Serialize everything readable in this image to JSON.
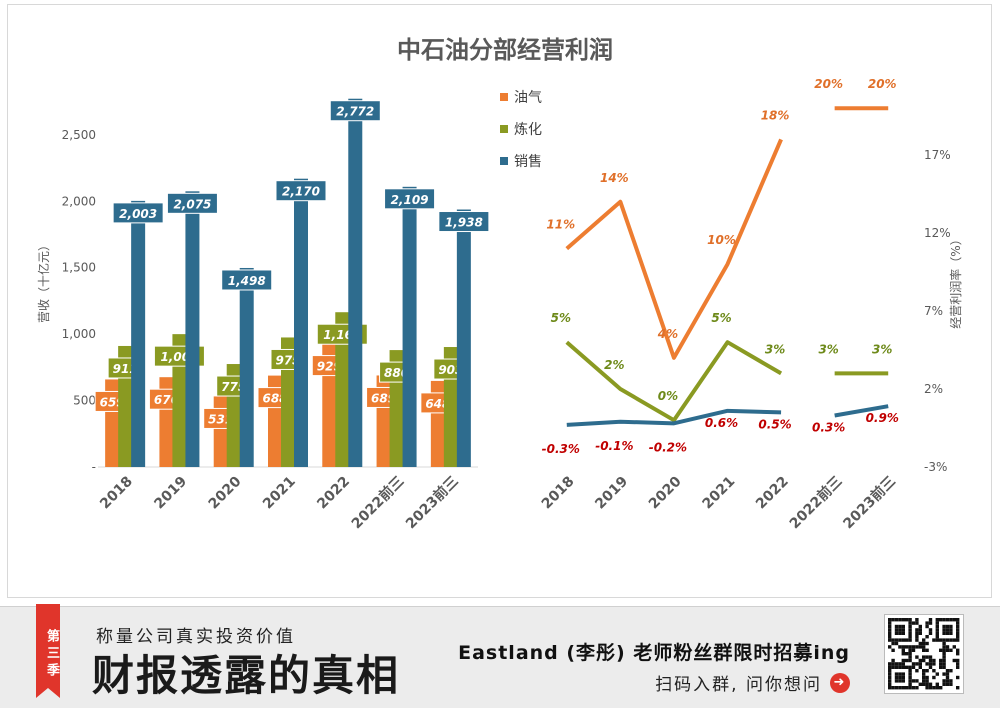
{
  "chart_data": {
    "title": "中石油分部经营利润",
    "legend": {
      "position": "top-center",
      "entries": [
        {
          "name": "油气",
          "color": "#ed7d31"
        },
        {
          "name": "炼化",
          "color": "#8a9a22"
        },
        {
          "name": "销售",
          "color": "#2e6c8e"
        }
      ]
    },
    "categories": [
      "2018",
      "2019",
      "2020",
      "2021",
      "2022",
      "2022前三",
      "2023前三"
    ],
    "charts": [
      {
        "type": "bar",
        "ylabel": "营收（十亿元）",
        "ylim": [
          0,
          2800
        ],
        "yticks": [
          "-",
          "500",
          "1,000",
          "1,500",
          "2,000",
          "2,500"
        ],
        "ytick_values": [
          0,
          500,
          1000,
          1500,
          2000,
          2500
        ],
        "grid": false,
        "series": [
          {
            "name": "油气",
            "values": [
              659,
              676,
              531,
              688,
              929,
              689,
              648
            ],
            "labels": [
              "659",
              "676",
              "531",
              "688",
              "929",
              "689",
              "648"
            ]
          },
          {
            "name": "炼化",
            "values": [
              911,
              1000,
              775,
              975,
              1165,
              880,
              903
            ],
            "labels": [
              "911",
              "1,000",
              "775",
              "975",
              "1,165",
              "880",
              "903"
            ]
          },
          {
            "name": "销售",
            "values": [
              2003,
              2075,
              1498,
              2170,
              2772,
              2109,
              1938
            ],
            "labels": [
              "2,003",
              "2,075",
              "1,498",
              "2,170",
              "2,772",
              "2,109",
              "1,938"
            ]
          }
        ]
      },
      {
        "type": "line",
        "ylabel": "经营利润率（%）",
        "ylim": [
          -3,
          22
        ],
        "yticks": [
          "-3%",
          "2%",
          "7%",
          "12%",
          "17%"
        ],
        "ytick_values": [
          -3,
          2,
          7,
          12,
          17
        ],
        "grid": false,
        "segments_break_after": "2022",
        "series": [
          {
            "name": "油气",
            "values": [
              11,
              14,
              4,
              10,
              18,
              20,
              20
            ],
            "labels": [
              "11%",
              "14%",
              "4%",
              "10%",
              "18%",
              "20%",
              "20%"
            ]
          },
          {
            "name": "炼化",
            "values": [
              5,
              2,
              0,
              5,
              3,
              3,
              3
            ],
            "labels": [
              "5%",
              "2%",
              "0%",
              "5%",
              "3%",
              "3%",
              "3%"
            ]
          },
          {
            "name": "销售",
            "values": [
              -0.3,
              -0.1,
              -0.2,
              0.6,
              0.5,
              0.3,
              0.9
            ],
            "labels": [
              "-0.3%",
              "-0.1%",
              "-0.2%",
              "0.6%",
              "0.5%",
              "0.3%",
              "0.9%"
            ]
          }
        ]
      }
    ]
  },
  "banner": {
    "season_tag": "第三季",
    "slogan": "称量公司真实投资价值",
    "brand": "财报透露的真相",
    "recruit": "Eastland (李彤) 老师粉丝群限时招募ing",
    "cta": "扫码入群, 问你想问",
    "cta_icon": "right-arrow-icon",
    "qr_icon": "qr-code-icon"
  }
}
